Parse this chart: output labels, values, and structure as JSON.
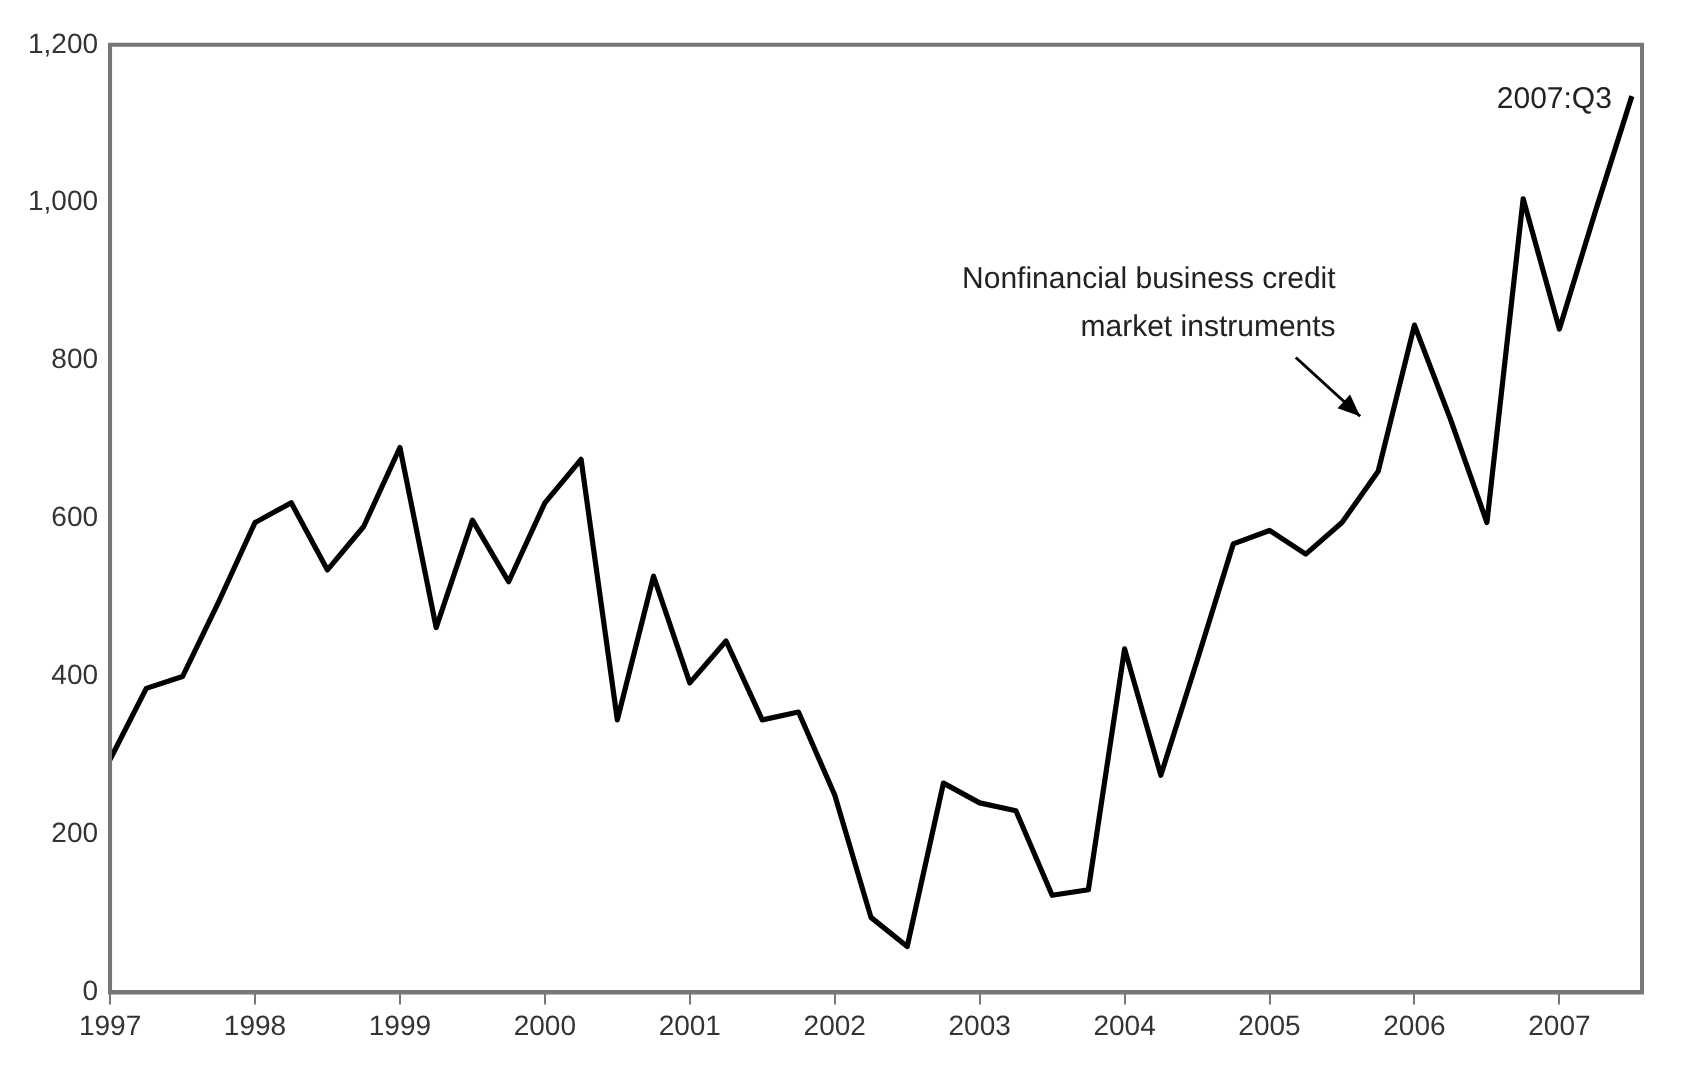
{
  "chart_data": {
    "type": "line",
    "x": [
      1997,
      1997.25,
      1997.5,
      1997.75,
      1998,
      1998.25,
      1998.5,
      1998.75,
      1999,
      1999.25,
      1999.5,
      1999.75,
      2000,
      2000.25,
      2000.5,
      2000.75,
      2001,
      2001.25,
      2001.5,
      2001.75,
      2002,
      2002.25,
      2002.5,
      2002.75,
      2003,
      2003.25,
      2003.5,
      2003.75,
      2004,
      2004.25,
      2004.5,
      2004.75,
      2005,
      2005.25,
      2005.5,
      2005.75,
      2006,
      2006.25,
      2006.5,
      2006.75,
      2007,
      2007.25,
      2007.5
    ],
    "series": [
      {
        "color": "#000000",
        "values": [
          295,
          385,
          400,
          495,
          595,
          620,
          535,
          590,
          690,
          462,
          598,
          520,
          620,
          675,
          345,
          527,
          392,
          445,
          345,
          355,
          250,
          95,
          58,
          265,
          240,
          230,
          123,
          130,
          435,
          275,
          420,
          568,
          585,
          555,
          595,
          660,
          845,
          725,
          595,
          1005,
          840,
          990,
          1135
        ]
      }
    ],
    "xlim": [
      1997,
      2007.57
    ],
    "xticks": [
      1997,
      1998,
      1999,
      2000,
      2001,
      2002,
      2003,
      2004,
      2005,
      2006,
      2007
    ],
    "ylim": [
      0,
      1200
    ],
    "yticks": [
      0,
      200,
      400,
      600,
      800,
      {
        "value": 1000,
        "label": "1,000"
      },
      {
        "value": 1200,
        "label": "1,200"
      }
    ],
    "annotations": [
      {
        "text": "2007:Q3",
        "x": 2007.5,
        "y": 1135
      },
      "Nonfinancial business credit\nmarket instruments"
    ],
    "grid": false,
    "legend": false,
    "marker": "none",
    "line_style": "solid"
  }
}
